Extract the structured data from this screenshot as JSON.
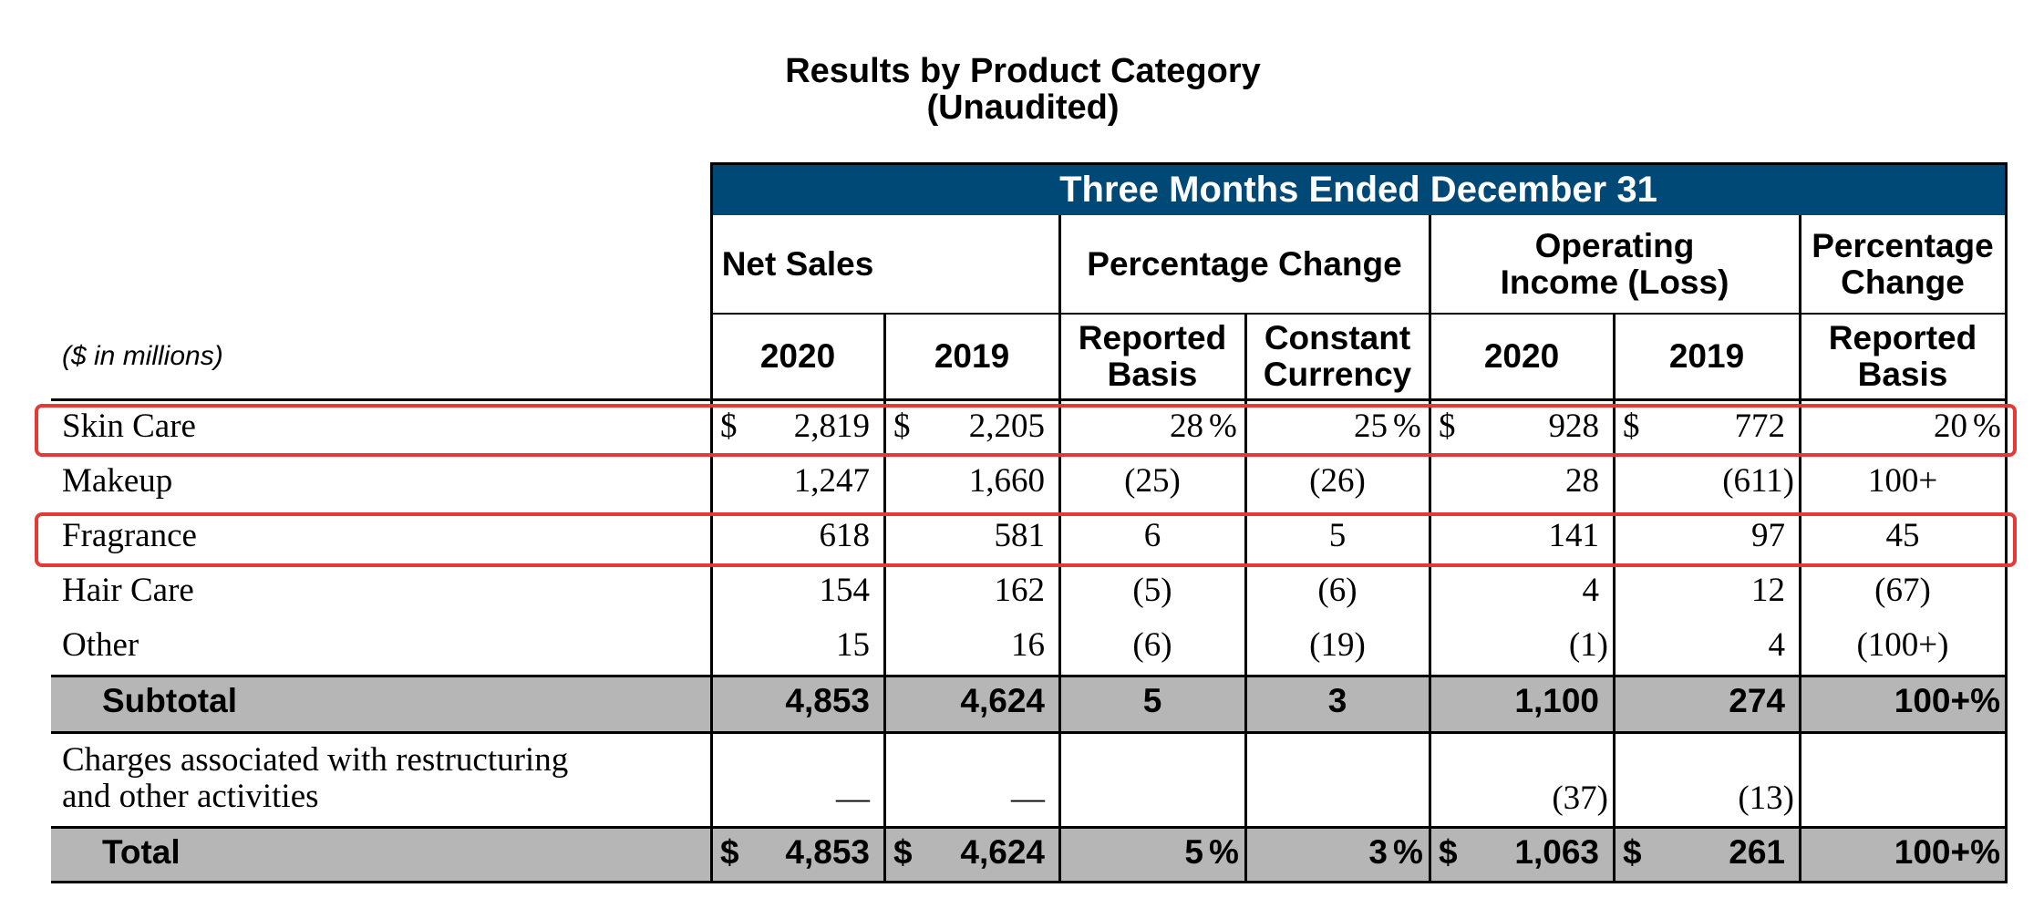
{
  "title": "Results by Product Category",
  "subtitle": "(Unaudited)",
  "units_note": "($ in millions)",
  "period_header": "Three Months Ended December 31",
  "group_headers": {
    "net_sales": "Net Sales",
    "pct_change": "Percentage Change",
    "op_income_line1": "Operating",
    "op_income_line2": "Income (Loss)",
    "pct_change2_line1": "Percentage",
    "pct_change2_line2": "Change"
  },
  "sub_headers": {
    "ns_2020": "2020",
    "ns_2019": "2019",
    "reported_line1": "Reported",
    "reported_line2": "Basis",
    "constant_line1": "Constant",
    "constant_line2": "Currency",
    "oi_2020": "2020",
    "oi_2019": "2019",
    "reported2_line1": "Reported",
    "reported2_line2": "Basis"
  },
  "currency_symbol": "$",
  "percent_symbol": "%",
  "rows": [
    {
      "label": "Skin Care",
      "ns2020": "2,819",
      "ns2019": "2,205",
      "reported": "28",
      "constant": "25",
      "oi2020": "928",
      "oi2019": "772",
      "reported2": "20"
    },
    {
      "label": "Makeup",
      "ns2020": "1,247",
      "ns2019": "1,660",
      "reported": "(25)",
      "constant": "(26)",
      "oi2020": "28",
      "oi2019": "(611)",
      "reported2": "100+"
    },
    {
      "label": "Fragrance",
      "ns2020": "618",
      "ns2019": "581",
      "reported": "6",
      "constant": "5",
      "oi2020": "141",
      "oi2019": "97",
      "reported2": "45"
    },
    {
      "label": "Hair Care",
      "ns2020": "154",
      "ns2019": "162",
      "reported": "(5)",
      "constant": "(6)",
      "oi2020": "4",
      "oi2019": "12",
      "reported2": "(67)"
    },
    {
      "label": "Other",
      "ns2020": "15",
      "ns2019": "16",
      "reported": "(6)",
      "constant": "(19)",
      "oi2020": "(1)",
      "oi2019": "4",
      "reported2": "(100+)"
    }
  ],
  "subtotal": {
    "label": "Subtotal",
    "ns2020": "4,853",
    "ns2019": "4,624",
    "reported": "5",
    "constant": "3",
    "oi2020": "1,100",
    "oi2019": "274",
    "reported2": "100+%"
  },
  "charges": {
    "label_line1": "Charges associated with restructuring",
    "label_line2": "and other activities",
    "ns2020": "—",
    "ns2019": "—",
    "oi2020": "(37)",
    "oi2019": "(13)"
  },
  "total": {
    "label": "Total",
    "ns2020": "4,853",
    "ns2019": "4,624",
    "reported": "5",
    "constant": "3",
    "oi2020": "1,063",
    "oi2019": "261",
    "reported2": "100+%"
  },
  "highlight_color": "#e53935",
  "header_band_color": "#004876",
  "shade_color": "#b6b6b6"
}
